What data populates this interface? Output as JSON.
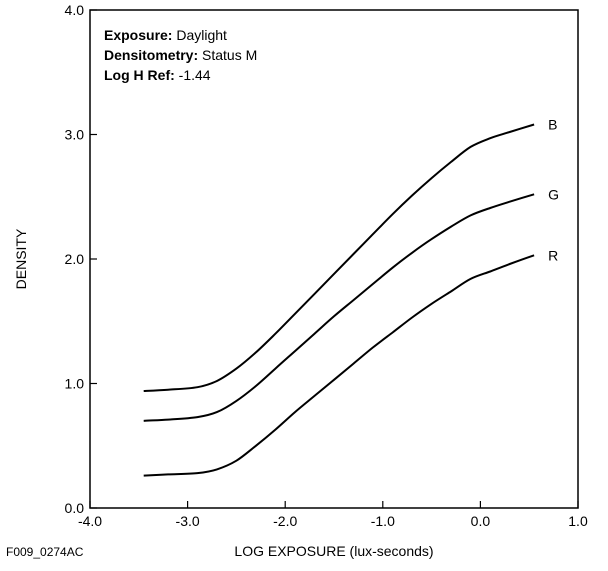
{
  "chart_data": {
    "type": "line",
    "xlabel": "LOG EXPOSURE (lux-seconds)",
    "ylabel": "DENSITY",
    "xlim": [
      -4.0,
      1.0
    ],
    "ylim": [
      0.0,
      4.0
    ],
    "x_ticks": [
      -4.0,
      -3.0,
      -2.0,
      -1.0,
      0.0,
      1.0
    ],
    "x_tick_labels": [
      "-4.0",
      "-3.0",
      "-2.0",
      "-1.0",
      "0.0",
      "1.0"
    ],
    "y_ticks": [
      0.0,
      1.0,
      2.0,
      3.0,
      4.0
    ],
    "y_tick_labels": [
      "0.0",
      "1.0",
      "2.0",
      "3.0",
      "4.0"
    ],
    "grid": false,
    "annotations": [
      {
        "key": "Exposure:",
        "value": "Daylight"
      },
      {
        "key": "Densitometry:",
        "value": "Status M"
      },
      {
        "key": "Log H Ref:",
        "value": "-1.44"
      }
    ],
    "figure_id": "F009_0274AC",
    "series": [
      {
        "name": "B",
        "color": "#000000",
        "points": [
          [
            -3.45,
            0.94
          ],
          [
            -3.2,
            0.95
          ],
          [
            -2.9,
            0.97
          ],
          [
            -2.7,
            1.02
          ],
          [
            -2.5,
            1.12
          ],
          [
            -2.3,
            1.25
          ],
          [
            -2.1,
            1.4
          ],
          [
            -1.9,
            1.56
          ],
          [
            -1.7,
            1.72
          ],
          [
            -1.5,
            1.88
          ],
          [
            -1.3,
            2.04
          ],
          [
            -1.1,
            2.2
          ],
          [
            -0.9,
            2.36
          ],
          [
            -0.7,
            2.51
          ],
          [
            -0.5,
            2.65
          ],
          [
            -0.3,
            2.78
          ],
          [
            -0.1,
            2.9
          ],
          [
            0.1,
            2.97
          ],
          [
            0.3,
            3.02
          ],
          [
            0.55,
            3.08
          ]
        ]
      },
      {
        "name": "G",
        "color": "#000000",
        "points": [
          [
            -3.45,
            0.7
          ],
          [
            -3.2,
            0.71
          ],
          [
            -2.9,
            0.73
          ],
          [
            -2.7,
            0.77
          ],
          [
            -2.5,
            0.86
          ],
          [
            -2.3,
            0.98
          ],
          [
            -2.1,
            1.12
          ],
          [
            -1.9,
            1.26
          ],
          [
            -1.7,
            1.4
          ],
          [
            -1.5,
            1.54
          ],
          [
            -1.3,
            1.67
          ],
          [
            -1.1,
            1.8
          ],
          [
            -0.9,
            1.93
          ],
          [
            -0.7,
            2.05
          ],
          [
            -0.5,
            2.16
          ],
          [
            -0.3,
            2.26
          ],
          [
            -0.1,
            2.35
          ],
          [
            0.1,
            2.41
          ],
          [
            0.3,
            2.46
          ],
          [
            0.55,
            2.52
          ]
        ]
      },
      {
        "name": "R",
        "color": "#000000",
        "points": [
          [
            -3.45,
            0.26
          ],
          [
            -3.2,
            0.27
          ],
          [
            -2.9,
            0.28
          ],
          [
            -2.7,
            0.31
          ],
          [
            -2.5,
            0.38
          ],
          [
            -2.3,
            0.5
          ],
          [
            -2.1,
            0.63
          ],
          [
            -1.9,
            0.77
          ],
          [
            -1.7,
            0.9
          ],
          [
            -1.5,
            1.03
          ],
          [
            -1.3,
            1.16
          ],
          [
            -1.1,
            1.29
          ],
          [
            -0.9,
            1.41
          ],
          [
            -0.7,
            1.53
          ],
          [
            -0.5,
            1.64
          ],
          [
            -0.3,
            1.74
          ],
          [
            -0.1,
            1.84
          ],
          [
            0.1,
            1.9
          ],
          [
            0.3,
            1.96
          ],
          [
            0.55,
            2.03
          ]
        ]
      }
    ]
  }
}
